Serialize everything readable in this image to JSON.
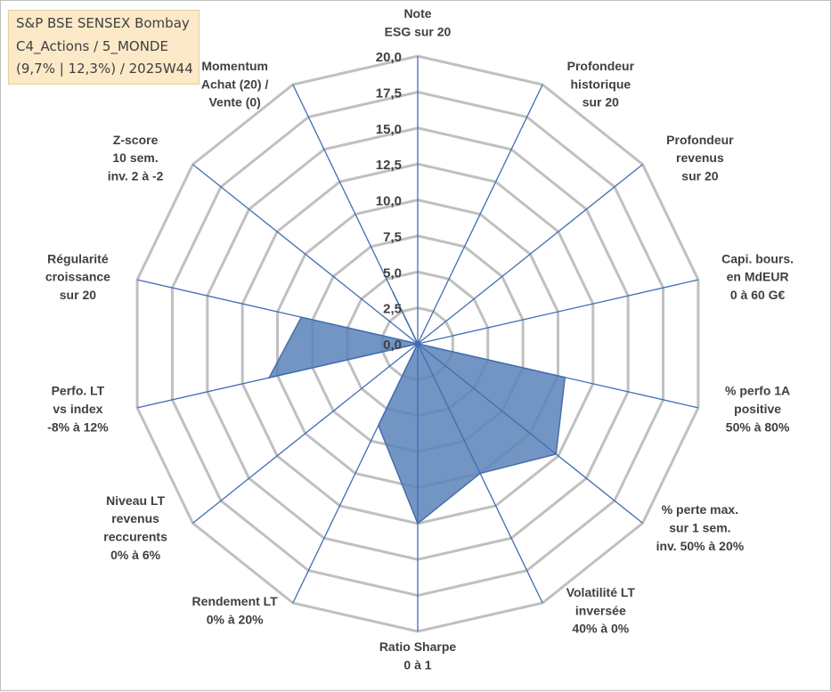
{
  "chart_data": {
    "type": "radar",
    "title_lines": [
      "S&P BSE SENSEX Bombay",
      "C4_Actions / 5_MONDE",
      "(9,7% | 12,3%) / 2025W44"
    ],
    "rmax": 20,
    "ticks": [
      "0,0",
      "2,5",
      "5,0",
      "7,5",
      "10,0",
      "12,5",
      "15,0",
      "17,5",
      "20,0"
    ],
    "axes": [
      {
        "label": [
          "Note",
          "ESG sur 20"
        ]
      },
      {
        "label": [
          "Profondeur",
          "historique",
          "sur 20"
        ]
      },
      {
        "label": [
          "Profondeur",
          "revenus",
          "sur 20"
        ]
      },
      {
        "label": [
          "Capi. bours.",
          "en MdEUR",
          "0 à 60 G€"
        ]
      },
      {
        "label": [
          "% perfo 1A",
          "positive",
          "50% à 80%"
        ]
      },
      {
        "label": [
          "% perte max.",
          "sur 1 sem.",
          "inv. 50% à 20%"
        ]
      },
      {
        "label": [
          "Volatilité LT",
          "inversée",
          "40% à 0%"
        ]
      },
      {
        "label": [
          "Ratio Sharpe",
          "0 à 1"
        ]
      },
      {
        "label": [
          "Rendement LT",
          "0% à 20%"
        ]
      },
      {
        "label": [
          "Niveau LT",
          "revenus",
          "reccurents",
          "0% à 6%"
        ]
      },
      {
        "label": [
          "Perfo. LT",
          "vs index",
          "-8% à 12%"
        ]
      },
      {
        "label": [
          "Régularité",
          "croissance",
          "sur 20"
        ]
      },
      {
        "label": [
          "Z-score",
          "10 sem.",
          "inv. 2 à -2"
        ]
      },
      {
        "label": [
          "Momentum",
          "Achat (20) /",
          "Vente (0)"
        ]
      }
    ],
    "series": [
      {
        "values": [
          0,
          0,
          0,
          0,
          10.5,
          12.3,
          10.0,
          12.5,
          6.3,
          0,
          10.6,
          8.3,
          0,
          4.0
        ]
      }
    ],
    "colors": {
      "fill": "#5b82b8",
      "stroke": "#4a6fa5",
      "grid": "#c0c0c0",
      "spoke": "#3f6db3"
    }
  }
}
